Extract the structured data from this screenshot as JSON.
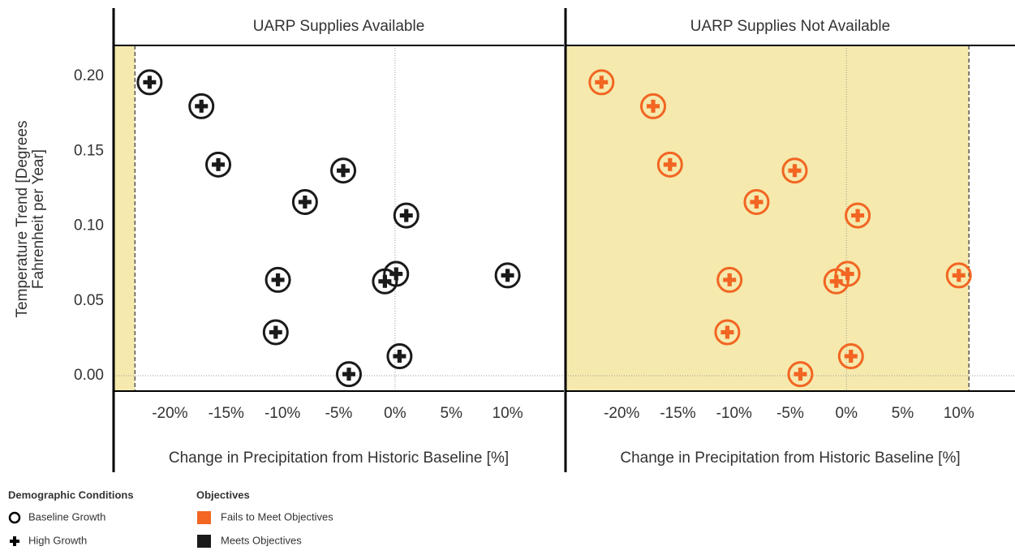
{
  "chart_data": [
    {
      "type": "scatter",
      "title": "UARP Supplies Available",
      "x_label": "Change in Precipitation from Historic Baseline [%]",
      "y_label": [
        "Temperature Trend [Degrees",
        "Fahrenheit per Year]"
      ],
      "color": "#1a1a1a",
      "shade_color": "#f5e9ad",
      "threshold": -23.1,
      "x": [
        -21.8,
        -17.2,
        -15.7,
        -4.6,
        -8.0,
        1.0,
        -10.4,
        -0.9,
        0.1,
        10.0,
        -10.6,
        0.4,
        -4.1
      ],
      "series": [
        {
          "name": "Baseline Growth",
          "marker": "circle",
          "values": [
            0.196,
            0.18,
            0.141,
            0.137,
            0.116,
            0.107,
            0.064,
            0.063,
            0.068,
            0.067,
            0.029,
            0.013,
            0.001
          ]
        },
        {
          "name": "High Growth",
          "marker": "plus",
          "values": [
            0.196,
            0.18,
            0.141,
            0.137,
            0.116,
            0.107,
            0.064,
            0.063,
            0.068,
            0.067,
            0.029,
            0.013,
            0.001
          ]
        }
      ],
      "xlim": [
        -25,
        15
      ],
      "ylim": [
        -0.0103,
        0.2206
      ],
      "xticks": [
        {
          "value": -20,
          "label": "-20%"
        },
        {
          "value": -15,
          "label": "-15%"
        },
        {
          "value": -10,
          "label": "-10%"
        },
        {
          "value": -5,
          "label": "-5%"
        },
        {
          "value": 0,
          "label": "0%"
        },
        {
          "value": 5,
          "label": "5%"
        },
        {
          "value": 10,
          "label": "10%"
        }
      ],
      "yticks": [
        {
          "value": 0,
          "label": "0.00"
        },
        {
          "value": 0.05,
          "label": "0.05"
        },
        {
          "value": 0.1,
          "label": "0.10"
        },
        {
          "value": 0.15,
          "label": "0.15"
        },
        {
          "value": 0.2,
          "label": "0.20"
        }
      ]
    },
    {
      "type": "scatter",
      "title": "UARP Supplies Not Available",
      "x_label": "Change in Precipitation from Historic Baseline [%]",
      "color": "#f26522",
      "shade_color": "#f5e9ad",
      "threshold": 10.9,
      "x": [
        -21.8,
        -17.2,
        -15.7,
        -4.6,
        -8.0,
        1.0,
        -10.4,
        -0.9,
        0.1,
        10.0,
        -10.6,
        0.4,
        -4.1
      ],
      "series": [
        {
          "name": "Baseline Growth",
          "marker": "circle",
          "values": [
            0.196,
            0.18,
            0.141,
            0.137,
            0.116,
            0.107,
            0.064,
            0.063,
            0.068,
            0.067,
            0.029,
            0.013,
            0.001
          ]
        },
        {
          "name": "High Growth",
          "marker": "plus",
          "values": [
            0.196,
            0.18,
            0.141,
            0.137,
            0.116,
            0.107,
            0.064,
            0.063,
            0.068,
            0.067,
            0.029,
            0.013,
            0.001
          ]
        }
      ],
      "xlim": [
        -25,
        15
      ],
      "ylim": [
        -0.0103,
        0.2206
      ],
      "xticks": [
        {
          "value": -20,
          "label": "-20%"
        },
        {
          "value": -15,
          "label": "-15%"
        },
        {
          "value": -10,
          "label": "-10%"
        },
        {
          "value": -5,
          "label": "-5%"
        },
        {
          "value": 0,
          "label": "0%"
        },
        {
          "value": 5,
          "label": "5%"
        },
        {
          "value": 10,
          "label": "10%"
        }
      ]
    }
  ],
  "legend": {
    "shape_title": "Demographic Conditions",
    "shapes": [
      {
        "marker": "circle",
        "label": "Baseline Growth"
      },
      {
        "marker": "plus",
        "label": "High Growth"
      }
    ],
    "color_title": "Objectives",
    "colors": [
      {
        "color": "#f26522",
        "label": "Fails to Meet Objectives"
      },
      {
        "color": "#1a1a1a",
        "label": "Meets Objectives"
      }
    ]
  }
}
